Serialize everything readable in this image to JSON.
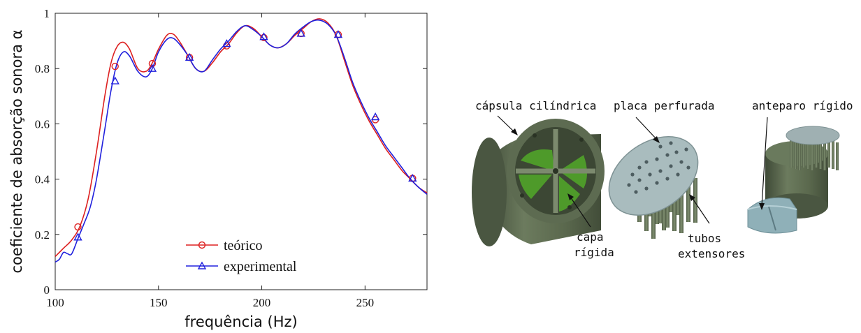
{
  "chart_data": {
    "type": "line",
    "xlabel": "frequência (Hz)",
    "ylabel": "coeficiente de absorção sonora α",
    "xlim": [
      100,
      280
    ],
    "ylim": [
      0,
      1
    ],
    "xticks": [
      100,
      150,
      200,
      250
    ],
    "yticks": [
      0,
      0.2,
      0.4,
      0.6,
      0.8,
      1
    ],
    "ytick_labels": [
      "0",
      "0.2",
      "0.4",
      "0.6",
      "0.8",
      "1"
    ],
    "grid": false,
    "legend_position": "bottom-center",
    "series": [
      {
        "name": "teórico",
        "color": "#dd2020",
        "marker": "circle",
        "x": [
          100,
          104,
          108,
          112,
          116,
          120,
          124,
          127,
          130,
          133,
          136,
          140,
          144,
          147,
          150,
          154,
          157,
          160,
          164,
          168,
          172,
          176,
          180,
          184,
          188,
          192,
          196,
          200,
          204,
          208,
          212,
          216,
          220,
          224,
          228,
          232,
          236,
          240,
          244,
          248,
          252,
          256,
          260,
          264,
          268,
          272,
          276,
          280
        ],
        "y": [
          0.12,
          0.15,
          0.18,
          0.23,
          0.33,
          0.5,
          0.7,
          0.82,
          0.88,
          0.895,
          0.87,
          0.8,
          0.79,
          0.82,
          0.87,
          0.92,
          0.925,
          0.9,
          0.85,
          0.8,
          0.79,
          0.82,
          0.86,
          0.89,
          0.93,
          0.955,
          0.945,
          0.915,
          0.885,
          0.875,
          0.89,
          0.92,
          0.945,
          0.97,
          0.98,
          0.965,
          0.92,
          0.83,
          0.74,
          0.67,
          0.61,
          0.56,
          0.51,
          0.47,
          0.43,
          0.4,
          0.37,
          0.35
        ],
        "marker_x": [
          111,
          129,
          147,
          165,
          183,
          201,
          219,
          237,
          255,
          273
        ],
        "marker_y": [
          0.227,
          0.808,
          0.818,
          0.84,
          0.882,
          0.912,
          0.927,
          0.923,
          0.615,
          0.403
        ]
      },
      {
        "name": "experimental",
        "color": "#2020dd",
        "marker": "triangle",
        "x": [
          100,
          102,
          104,
          106,
          108,
          111,
          114,
          117,
          120,
          124,
          127,
          130,
          133,
          136,
          140,
          144,
          147,
          150,
          154,
          157,
          160,
          164,
          168,
          172,
          176,
          180,
          184,
          188,
          192,
          196,
          200,
          204,
          208,
          212,
          216,
          220,
          224,
          228,
          232,
          236,
          240,
          244,
          248,
          252,
          256,
          260,
          264,
          268,
          272,
          276,
          280
        ],
        "y": [
          0.1,
          0.11,
          0.135,
          0.13,
          0.13,
          0.185,
          0.24,
          0.3,
          0.4,
          0.58,
          0.72,
          0.82,
          0.86,
          0.845,
          0.79,
          0.77,
          0.8,
          0.86,
          0.905,
          0.91,
          0.89,
          0.85,
          0.8,
          0.79,
          0.83,
          0.87,
          0.9,
          0.935,
          0.955,
          0.94,
          0.915,
          0.885,
          0.875,
          0.89,
          0.925,
          0.95,
          0.97,
          0.975,
          0.96,
          0.92,
          0.84,
          0.75,
          0.68,
          0.62,
          0.57,
          0.52,
          0.48,
          0.44,
          0.4,
          0.37,
          0.345
        ],
        "marker_x": [
          111,
          129,
          147,
          165,
          183,
          201,
          219,
          237,
          255,
          273
        ],
        "marker_y": [
          0.19,
          0.755,
          0.8,
          0.84,
          0.89,
          0.915,
          0.927,
          0.923,
          0.625,
          0.403
        ]
      }
    ]
  },
  "diagram": {
    "labels": {
      "capsule": "cápsula cilíndrica",
      "plate": "placa perfurada",
      "bulkhead": "anteparo rígido",
      "rigid_layer_1": "capa",
      "rigid_layer_2": "rígida",
      "tubes_1": "tubos",
      "tubes_2": "extensores"
    },
    "colors": {
      "housing": "#59674e",
      "housing_light": "#7c8a6e",
      "green_face": "#4e9a2a",
      "plate": "#9fb4b6",
      "tubes": "#66755a",
      "bulkhead": "#8fb0b8"
    }
  }
}
